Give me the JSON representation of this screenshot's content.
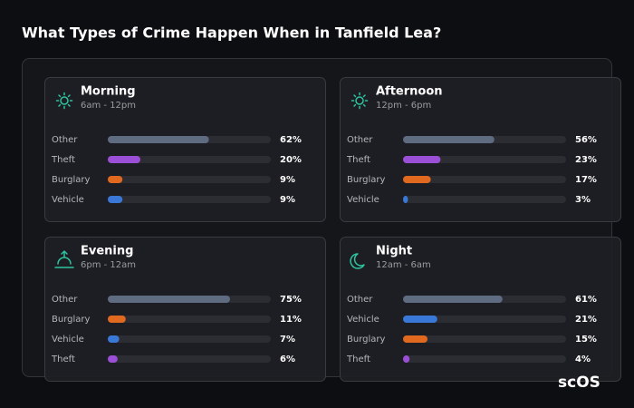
{
  "title": "What Types of Crime Happen When in Tanfield Lea?",
  "logo": "scOS",
  "chart_data": [
    {
      "type": "bar",
      "title": "Morning",
      "subtitle": "6am - 12pm",
      "xlim": [
        0,
        100
      ],
      "categories": [
        "Other",
        "Theft",
        "Burglary",
        "Vehicle"
      ],
      "values": [
        62,
        20,
        9,
        9
      ],
      "value_labels": [
        "62%",
        "20%",
        "9%",
        "9%"
      ],
      "colors": [
        "#5f6b80",
        "#9b4fd6",
        "#e0691f",
        "#3a78d8"
      ]
    },
    {
      "type": "bar",
      "title": "Afternoon",
      "subtitle": "12pm - 6pm",
      "xlim": [
        0,
        100
      ],
      "categories": [
        "Other",
        "Theft",
        "Burglary",
        "Vehicle"
      ],
      "values": [
        56,
        23,
        17,
        3
      ],
      "value_labels": [
        "56%",
        "23%",
        "17%",
        "3%"
      ],
      "colors": [
        "#5f6b80",
        "#9b4fd6",
        "#e0691f",
        "#3a78d8"
      ]
    },
    {
      "type": "bar",
      "title": "Evening",
      "subtitle": "6pm - 12am",
      "xlim": [
        0,
        100
      ],
      "categories": [
        "Other",
        "Burglary",
        "Vehicle",
        "Theft"
      ],
      "values": [
        75,
        11,
        7,
        6
      ],
      "value_labels": [
        "75%",
        "11%",
        "7%",
        "6%"
      ],
      "colors": [
        "#5f6b80",
        "#e0691f",
        "#3a78d8",
        "#9b4fd6"
      ]
    },
    {
      "type": "bar",
      "title": "Night",
      "subtitle": "12am - 6am",
      "xlim": [
        0,
        100
      ],
      "categories": [
        "Other",
        "Vehicle",
        "Burglary",
        "Theft"
      ],
      "values": [
        61,
        21,
        15,
        4
      ],
      "value_labels": [
        "61%",
        "21%",
        "15%",
        "4%"
      ],
      "colors": [
        "#5f6b80",
        "#3a78d8",
        "#e0691f",
        "#9b4fd6"
      ]
    }
  ]
}
